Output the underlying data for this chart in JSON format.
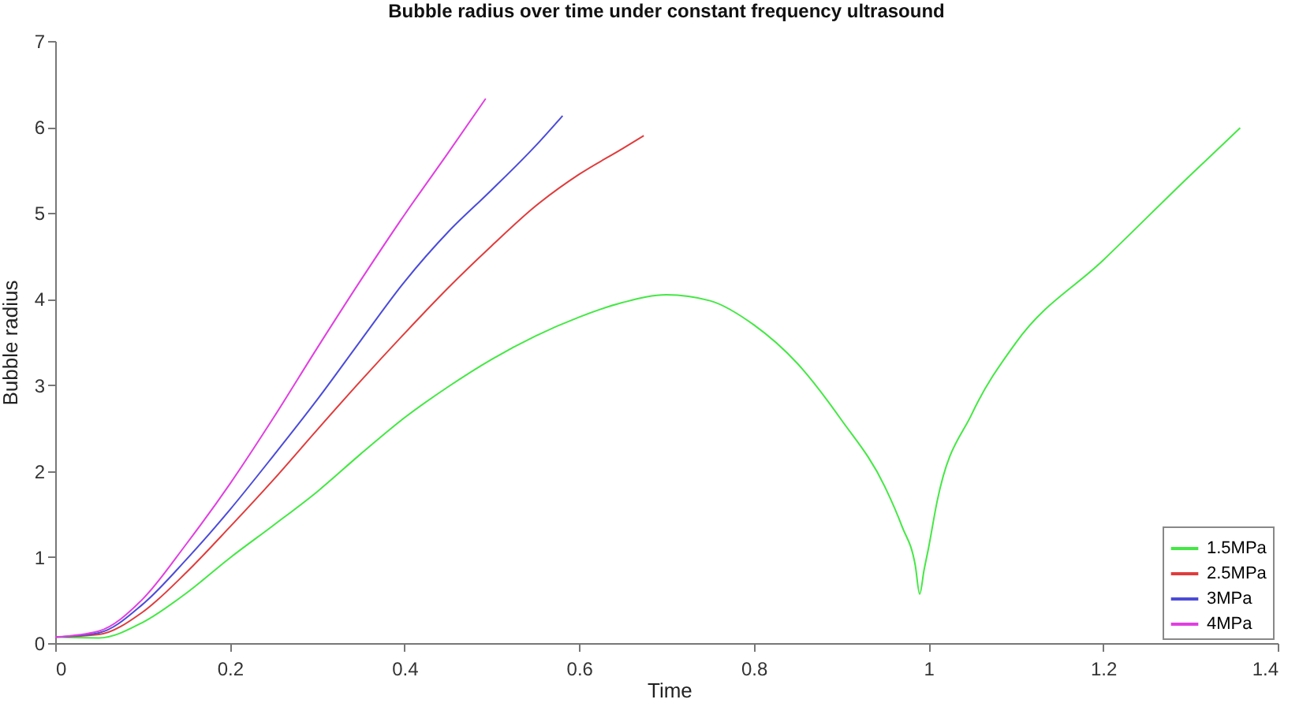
{
  "chart_data": {
    "type": "line",
    "title": "Bubble radius over time under constant frequency ultrasound",
    "xlabel": "Time",
    "ylabel": "Bubble radius",
    "xlim": [
      0,
      1.4
    ],
    "ylim": [
      0,
      7
    ],
    "xticks": [
      0,
      0.2,
      0.4,
      0.6,
      0.8,
      1,
      1.2,
      1.4
    ],
    "yticks": [
      0,
      1,
      2,
      3,
      4,
      5,
      6,
      7
    ],
    "grid": false,
    "legend": "bottom right",
    "line_style": "solid",
    "series": [
      {
        "name": "1.5MPa",
        "color": "#44e844",
        "x": [
          0,
          0.05,
          0.1,
          0.15,
          0.2,
          0.25,
          0.3,
          0.35,
          0.4,
          0.45,
          0.5,
          0.55,
          0.6,
          0.65,
          0.7,
          0.75,
          0.8,
          0.85,
          0.9,
          0.95,
          0.97,
          0.985,
          0.99,
          0.995,
          1,
          1.01,
          1.05,
          1.1,
          1.2,
          1.3,
          1.357
        ],
        "values": [
          0.07,
          0.06,
          0.24,
          0.58,
          0.99,
          1.37,
          1.76,
          2.2,
          2.62,
          2.98,
          3.3,
          3.57,
          3.79,
          3.96,
          4.05,
          3.98,
          3.7,
          3.25,
          2.6,
          1.82,
          1.35,
          0.9,
          0.57,
          0.85,
          1.1,
          1.65,
          2.67,
          3.49,
          4.45,
          5.44,
          5.99
        ]
      },
      {
        "name": "2.5MPa",
        "color": "#e03c3c",
        "x": [
          0,
          0.05,
          0.1,
          0.15,
          0.2,
          0.25,
          0.3,
          0.35,
          0.4,
          0.45,
          0.5,
          0.55,
          0.6,
          0.65,
          0.674
        ],
        "values": [
          0.07,
          0.1,
          0.36,
          0.82,
          1.35,
          1.9,
          2.48,
          3.05,
          3.6,
          4.13,
          4.62,
          5.08,
          5.45,
          5.75,
          5.9
        ]
      },
      {
        "name": "3MPa",
        "color": "#4b4bd8",
        "x": [
          0,
          0.05,
          0.1,
          0.15,
          0.2,
          0.25,
          0.3,
          0.35,
          0.4,
          0.45,
          0.5,
          0.55,
          0.581
        ],
        "values": [
          0.07,
          0.12,
          0.45,
          0.97,
          1.55,
          2.18,
          2.83,
          3.52,
          4.2,
          4.78,
          5.27,
          5.78,
          6.13
        ]
      },
      {
        "name": "4MPa",
        "color": "#e040e0",
        "x": [
          0,
          0.05,
          0.1,
          0.15,
          0.2,
          0.25,
          0.3,
          0.35,
          0.4,
          0.45,
          0.493
        ],
        "values": [
          0.07,
          0.14,
          0.51,
          1.15,
          1.85,
          2.62,
          3.43,
          4.22,
          4.98,
          5.7,
          6.33
        ]
      }
    ]
  }
}
